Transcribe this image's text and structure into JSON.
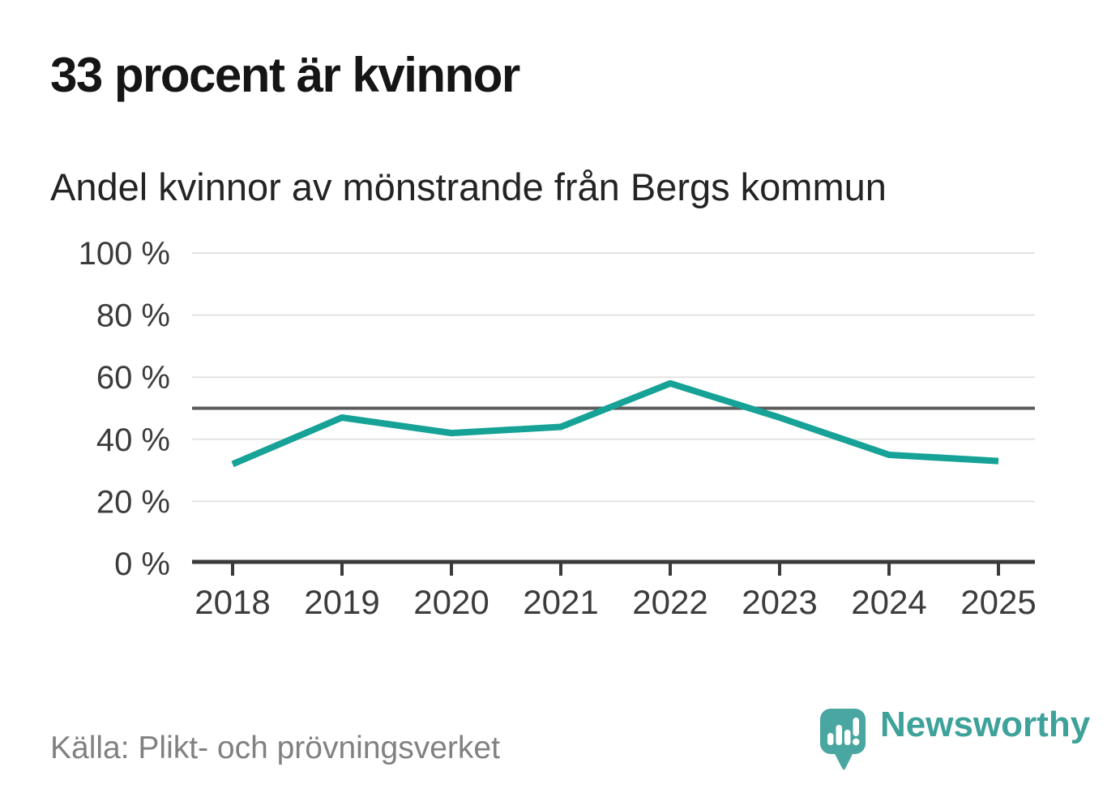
{
  "page": {
    "title": "33 procent är kvinnor",
    "subtitle": "Andel kvinnor av mönstrande från Bergs kommun",
    "source": "Källa: Plikt- och prövningsverket",
    "brand": "Newsworthy"
  },
  "colors": {
    "line": "#16A296",
    "grid": "#E3E3E3",
    "refline": "#5A5A5A",
    "axis": "#3A3A3A",
    "label": "#3C3C3C",
    "title_text": "#151515",
    "source_text": "#818181",
    "logo_mark": "#4AA6A0",
    "logo_text": "#3EA29B"
  },
  "chart_data": {
    "type": "line",
    "title": "33 procent är kvinnor",
    "subtitle": "Andel kvinnor av mönstrande från Bergs kommun",
    "x": [
      "2018",
      "2019",
      "2020",
      "2021",
      "2022",
      "2023",
      "2024",
      "2025"
    ],
    "series": [
      {
        "name": "Andel kvinnor av mönstrande",
        "values": [
          32,
          47,
          42,
          44,
          58,
          47,
          35,
          33
        ]
      }
    ],
    "unit": "%",
    "ylim": [
      0,
      100
    ],
    "yticks": [
      0,
      20,
      40,
      60,
      80,
      100
    ],
    "ytick_labels": [
      "0 %",
      "20 %",
      "40 %",
      "60 %",
      "80 %",
      "100 %"
    ],
    "reference_line": 50,
    "grid": "horizontal",
    "legend": "none",
    "xlabel": "",
    "ylabel": ""
  }
}
